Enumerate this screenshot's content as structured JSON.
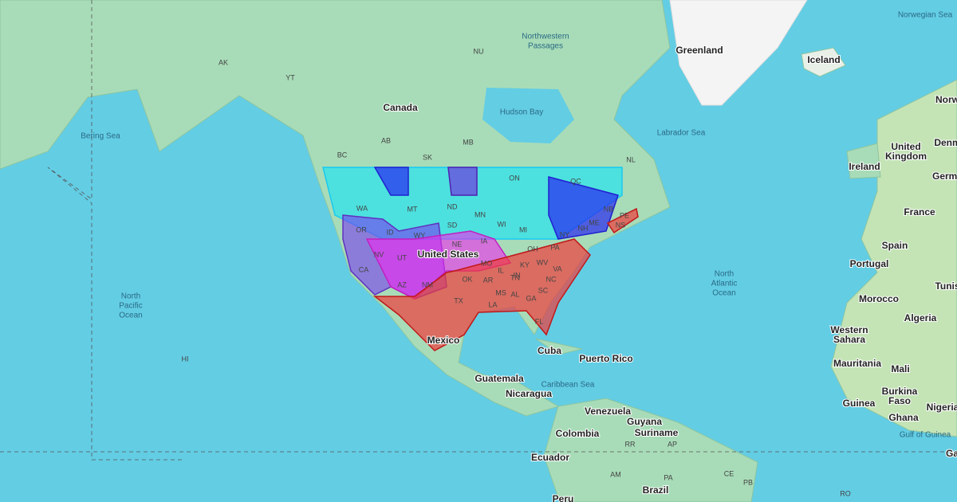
{
  "countries": [
    "Greenland",
    "Iceland",
    "Canada",
    "United States",
    "Mexico",
    "Cuba",
    "Puerto Rico",
    "Guatemala",
    "Nicaragua",
    "Venezuela",
    "Guyana",
    "Suriname",
    "Colombia",
    "Ecuador",
    "Brazil",
    "Peru",
    "Ireland",
    [
      "United",
      "Kingdom"
    ],
    "France",
    "Spain",
    "Portugal",
    "Morocco",
    "Algeria",
    [
      "Western",
      "Sahara"
    ],
    "Mauritania",
    "Mali",
    [
      "Burkina",
      "Faso"
    ],
    "Guinea",
    "Ghana",
    "Nigeria",
    "Tunis",
    "Norw",
    "Denm",
    "Germa",
    "Ga"
  ],
  "seas": [
    [
      "Norwegian Sea"
    ],
    [
      "Northwestern",
      "Passages"
    ],
    [
      "Hudson Bay"
    ],
    [
      "Bering Sea"
    ],
    [
      "Labrador Sea"
    ],
    [
      "North",
      "Pacific",
      "Ocean"
    ],
    [
      "North",
      "Atlantic",
      "Ocean"
    ],
    [
      "Caribbean Sea"
    ],
    [
      "Gulf of Guinea"
    ]
  ],
  "regions": [
    "AK",
    "YT",
    "NU",
    "BC",
    "AB",
    "SK",
    "MB",
    "ON",
    "QC",
    "NL",
    "NB",
    "NS",
    "PE",
    "HI",
    "WA",
    "OR",
    "CA",
    "NV",
    "ID",
    "MT",
    "WY",
    "UT",
    "AZ",
    "NM",
    "ND",
    "SD",
    "NE",
    "IA",
    "MN",
    "WI",
    "MI",
    "IL",
    "IN",
    "OH",
    "PA",
    "NY",
    "ME",
    "MO",
    "OK",
    "TX",
    "AR",
    "LA",
    "MS",
    "AL",
    "GA",
    "FL",
    "TN",
    "KY",
    "NC",
    "SC",
    "VA",
    "WV",
    "NH",
    "RR",
    "AP",
    "AM",
    "PA",
    "CE",
    "PB",
    "RO"
  ]
}
